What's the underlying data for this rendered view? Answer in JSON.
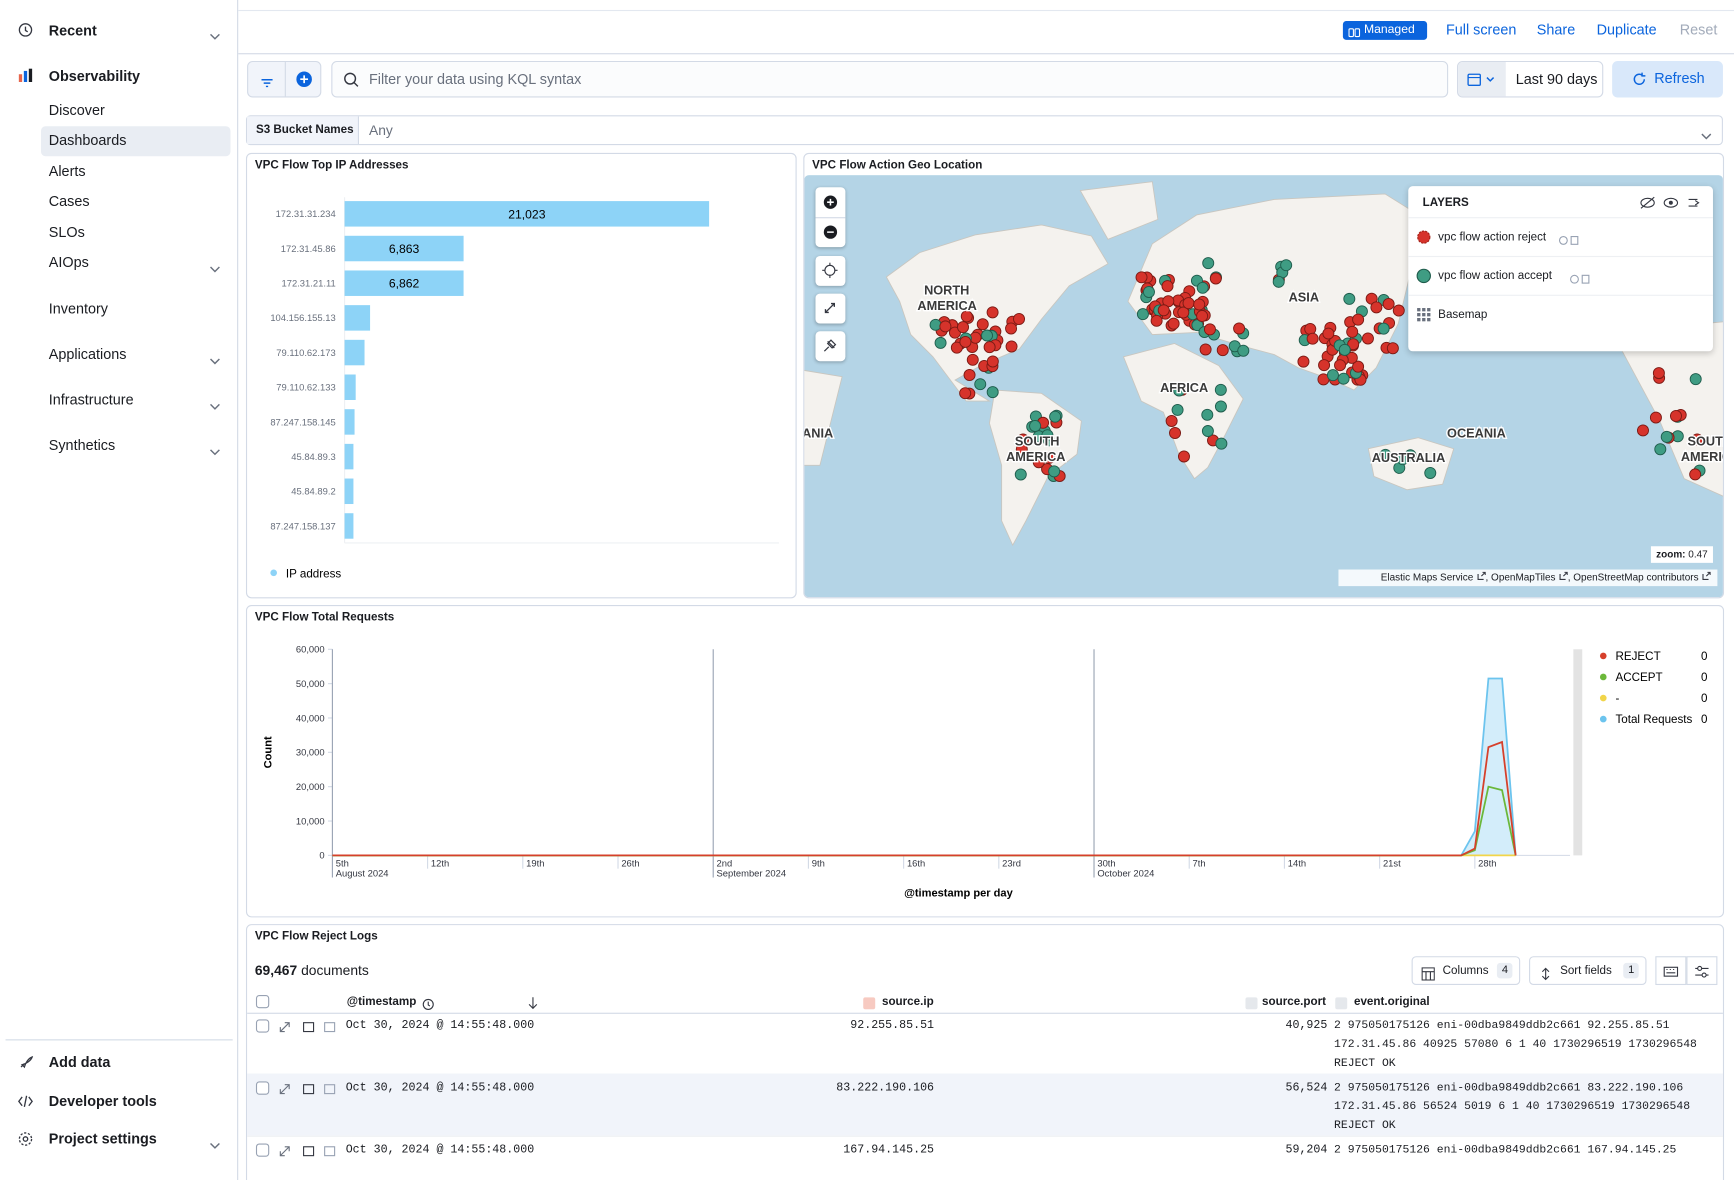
{
  "sidebar": {
    "recent": "Recent",
    "section": "Observability",
    "items": [
      "Discover",
      "Dashboards",
      "Alerts",
      "Cases",
      "SLOs",
      "AIOps"
    ],
    "groups": [
      "Inventory",
      "Applications",
      "Infrastructure",
      "Synthetics"
    ],
    "footer": [
      "Add data",
      "Developer tools",
      "Project settings"
    ]
  },
  "header": {
    "badge": "Managed",
    "actions": [
      "Full screen",
      "Share",
      "Duplicate",
      "Reset"
    ]
  },
  "query": {
    "placeholder": "Filter your data using KQL syntax",
    "date_range": "Last 90 days",
    "refresh": "Refresh"
  },
  "control": {
    "label": "S3 Bucket Names",
    "value": "Any"
  },
  "chart_data": [
    {
      "type": "bar",
      "orientation": "horizontal",
      "title": "VPC Flow Top IP Addresses",
      "categories": [
        "172.31.31.234",
        "172.31.45.86",
        "172.31.21.11",
        "104.156.155.13",
        "79.110.62.173",
        "79.110.62.133",
        "87.247.158.145",
        "45.84.89.3",
        "45.84.89.2",
        "87.247.158.137"
      ],
      "series": [
        {
          "name": "IP address",
          "color": "#8dd3f7",
          "values": [
            21023,
            6863,
            6862,
            1470,
            1150,
            640,
            575,
            510,
            510,
            510
          ],
          "value_labels": [
            "21,023",
            "6,863",
            "6,862",
            null,
            null,
            null,
            null,
            null,
            null,
            null
          ]
        }
      ]
    },
    {
      "type": "line",
      "title": "VPC Flow Total Requests",
      "y_label": "Count",
      "x_label": "@timestamp per day",
      "x": [
        "2024-08-05",
        "2024-10-27",
        "2024-10-28",
        "2024-10-29",
        "2024-10-30",
        "2024-10-31"
      ],
      "xlim": [
        "2024-08-05",
        "2024-11-04"
      ],
      "xticks": [
        {
          "value": "2024-08-05",
          "label": "5th",
          "group": "August 2024"
        },
        {
          "value": "2024-08-12",
          "label": "12th"
        },
        {
          "value": "2024-08-19",
          "label": "19th"
        },
        {
          "value": "2024-08-26",
          "label": "26th"
        },
        {
          "value": "2024-09-02",
          "label": "2nd",
          "group": "September 2024"
        },
        {
          "value": "2024-09-09",
          "label": "9th"
        },
        {
          "value": "2024-09-16",
          "label": "16th"
        },
        {
          "value": "2024-09-23",
          "label": "23rd"
        },
        {
          "value": "2024-09-30",
          "label": "30th",
          "group": "October 2024"
        },
        {
          "value": "2024-10-07",
          "label": "7th"
        },
        {
          "value": "2024-10-14",
          "label": "14th"
        },
        {
          "value": "2024-10-21",
          "label": "21st"
        },
        {
          "value": "2024-10-28",
          "label": "28th"
        }
      ],
      "ylim": [
        0,
        60000
      ],
      "yticks": [
        0,
        {
          "value": 10000,
          "label": "10,000"
        },
        {
          "value": 20000,
          "label": "20,000"
        },
        {
          "value": 30000,
          "label": "30,000"
        },
        {
          "value": 40000,
          "label": "40,000"
        },
        {
          "value": 50000,
          "label": "50,000"
        },
        {
          "value": 60000,
          "label": "60,000"
        }
      ],
      "legend": "right",
      "series": [
        {
          "name": "Total Requests",
          "color": "#6cc4ee",
          "style": "area",
          "values": [
            0,
            0,
            7000,
            51500,
            51500,
            0
          ],
          "legend_value": 0
        },
        {
          "name": "-",
          "color": "#f1d54a",
          "values": [
            0,
            0,
            0,
            0,
            0,
            0
          ],
          "legend_value": 0
        },
        {
          "name": "ACCEPT",
          "color": "#6bb83a",
          "values": [
            0,
            0,
            1500,
            20000,
            19000,
            0
          ],
          "legend_value": 0
        },
        {
          "name": "REJECT",
          "color": "#d6402b",
          "values": [
            0,
            0,
            2000,
            31500,
            33000,
            0
          ],
          "legend_value": 0
        }
      ],
      "legend_order": [
        3,
        2,
        1,
        0
      ]
    }
  ],
  "map": {
    "title": "VPC Flow Action Geo Location",
    "layers_title": "LAYERS",
    "layers": [
      {
        "name": "vpc flow action reject",
        "color": "#d6332b"
      },
      {
        "name": "vpc flow action accept",
        "color": "#3f9c83"
      },
      {
        "name": "Basemap"
      }
    ],
    "labels": [
      "NORTH",
      "AMERICA",
      "SOUTH",
      "AMERICA",
      "ASIA",
      "AFRICA",
      "OCEANIA",
      "AUSTRALIA",
      "OCEANIA",
      "SOUTH",
      "AMERICA"
    ],
    "zoom_label": "zoom:",
    "zoom": 0.47,
    "attribution": [
      "Elastic Maps Service",
      "OpenMapTiles",
      "OpenStreetMap contributors"
    ]
  },
  "table": {
    "title": "VPC Flow Reject Logs",
    "count": "69,467",
    "count_suffix": "documents",
    "buttons": [
      {
        "label": "Columns",
        "count": 4
      },
      {
        "label": "Sort fields",
        "count": 1
      }
    ],
    "columns": [
      "@timestamp",
      "source.ip",
      "source.port",
      "event.original"
    ],
    "rows": [
      [
        "Oct 30, 2024 @ 14:55:48.000",
        "92.255.85.51",
        "40,925",
        "2 975050175126 eni-00dba9849ddb2c661 92.255.85.51 172.31.45.86 40925 57080 6 1 40 1730296519 1730296548 REJECT OK"
      ],
      [
        "Oct 30, 2024 @ 14:55:48.000",
        "83.222.190.106",
        "56,524",
        "2 975050175126 eni-00dba9849ddb2c661 83.222.190.106 172.31.45.86 56524 5019 6 1 40 1730296519 1730296548 REJECT OK"
      ],
      [
        "Oct 30, 2024 @ 14:55:48.000",
        "167.94.145.25",
        "59,204",
        "2 975050175126 eni-00dba9849ddb2c661 167.94.145.25"
      ]
    ]
  }
}
